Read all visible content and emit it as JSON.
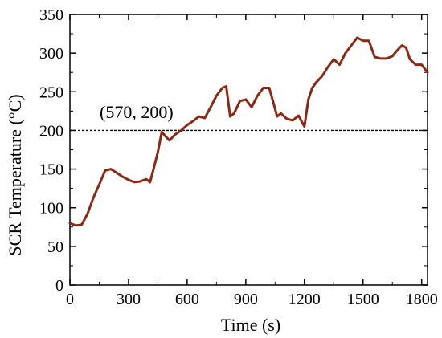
{
  "chart_data": {
    "type": "line",
    "xlabel": "Time (s)",
    "ylabel": "SCR Temperature (°C)",
    "xlim": [
      0,
      1830
    ],
    "ylim": [
      0,
      350
    ],
    "xticks": [
      0,
      300,
      600,
      900,
      1200,
      1500,
      1800
    ],
    "yticks": [
      0,
      50,
      100,
      150,
      200,
      250,
      300,
      350
    ],
    "grid": false,
    "line_color": "#8B2A14",
    "reference_line": {
      "y": 200,
      "style": "dashed",
      "color": "#000000"
    },
    "annotation": {
      "text": "(570, 200)",
      "x": 570,
      "y": 200
    },
    "series": [
      {
        "x": [
          0,
          30,
          60,
          90,
          120,
          150,
          180,
          210,
          240,
          270,
          300,
          330,
          360,
          390,
          410,
          430,
          450,
          470,
          490,
          510,
          540,
          570,
          600,
          630,
          660,
          690,
          720,
          750,
          780,
          800,
          820,
          840,
          870,
          900,
          930,
          960,
          990,
          1020,
          1040,
          1060,
          1080,
          1110,
          1140,
          1170,
          1200,
          1220,
          1240,
          1260,
          1290,
          1320,
          1350,
          1380,
          1410,
          1440,
          1470,
          1500,
          1530,
          1560,
          1590,
          1620,
          1650,
          1680,
          1700,
          1720,
          1740,
          1770,
          1800,
          1830
        ],
        "values": [
          80,
          77,
          78,
          92,
          113,
          130,
          148,
          150,
          145,
          140,
          136,
          133,
          134,
          137,
          133,
          152,
          172,
          198,
          192,
          187,
          195,
          200,
          207,
          212,
          218,
          216,
          230,
          245,
          255,
          257,
          218,
          222,
          238,
          240,
          230,
          245,
          255,
          255,
          237,
          218,
          222,
          215,
          213,
          219,
          205,
          240,
          255,
          262,
          270,
          282,
          292,
          285,
          300,
          310,
          320,
          316,
          316,
          295,
          293,
          293,
          296,
          305,
          310,
          307,
          292,
          285,
          285,
          275
        ]
      }
    ]
  }
}
